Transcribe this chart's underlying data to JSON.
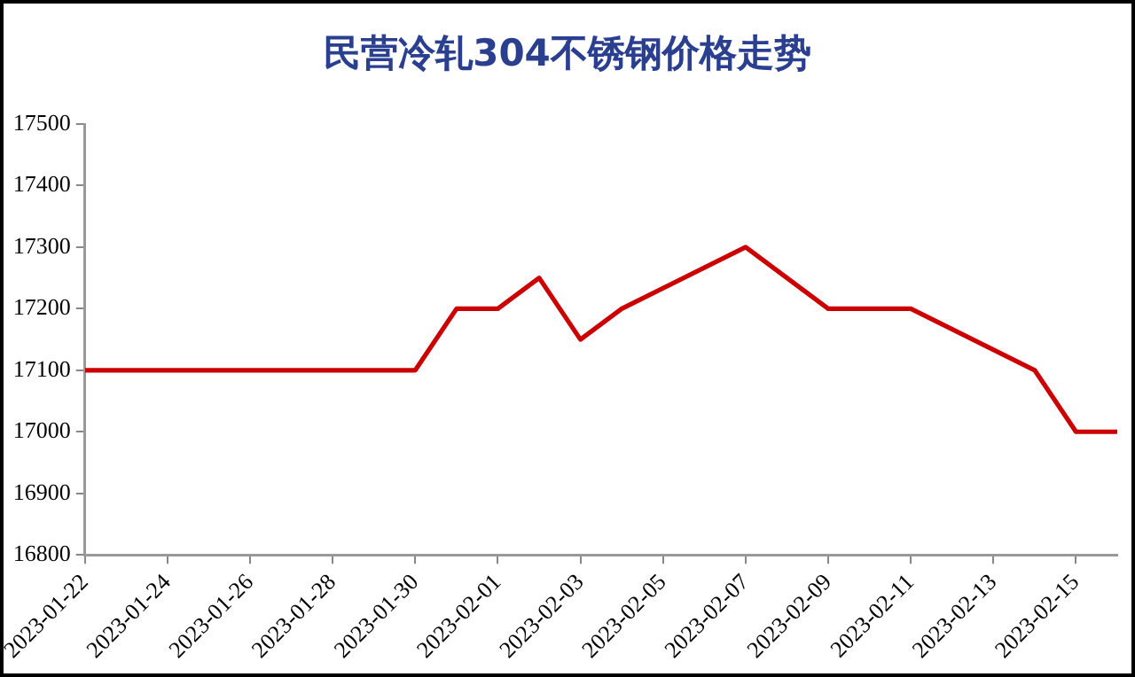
{
  "chart_data": {
    "type": "line",
    "title": "民营冷轧304不锈钢价格走势",
    "x": [
      "2023-01-22",
      "2023-01-30",
      "2023-01-31",
      "2023-02-01",
      "2023-02-02",
      "2023-02-03",
      "2023-02-04",
      "2023-02-07",
      "2023-02-09",
      "2023-02-11",
      "2023-02-14",
      "2023-02-15",
      "2023-02-16"
    ],
    "series": [
      {
        "color": "#cc0000",
        "values": [
          17100,
          17100,
          17200,
          17200,
          17250,
          17150,
          17200,
          17300,
          17200,
          17200,
          17100,
          17000,
          17000
        ]
      }
    ],
    "xlim": [
      "2023-01-22",
      "2023-02-16"
    ],
    "xticks": [
      "2023-01-22",
      "2023-01-24",
      "2023-01-26",
      "2023-01-28",
      "2023-01-30",
      "2023-02-01",
      "2023-02-03",
      "2023-02-05",
      "2023-02-07",
      "2023-02-09",
      "2023-02-11",
      "2023-02-13",
      "2023-02-15"
    ],
    "ylim": [
      16800,
      17500
    ],
    "yticks": [
      16800,
      16900,
      17000,
      17100,
      17200,
      17300,
      17400,
      17500
    ],
    "grid": false,
    "legend": false,
    "marker": "none",
    "line_style": "solid"
  }
}
